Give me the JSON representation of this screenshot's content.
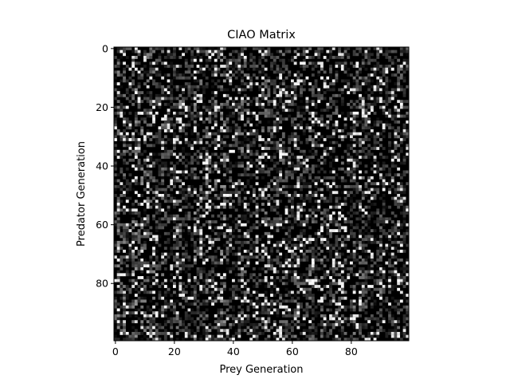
{
  "chart_data": {
    "type": "heatmap",
    "title": "CIAO Matrix",
    "xlabel": "Prey Generation",
    "ylabel": "Predator Generation",
    "x_range": [
      0,
      99
    ],
    "y_range": [
      0,
      99
    ],
    "rows": 100,
    "cols": 100,
    "y_axis_inverted": true,
    "colormap": "gray",
    "xticks": [
      {
        "value": 0,
        "label": "0"
      },
      {
        "value": 20,
        "label": "20"
      },
      {
        "value": 40,
        "label": "40"
      },
      {
        "value": 60,
        "label": "60"
      },
      {
        "value": 80,
        "label": "80"
      }
    ],
    "yticks": [
      {
        "value": 0,
        "label": "0"
      },
      {
        "value": 20,
        "label": "20"
      },
      {
        "value": 40,
        "label": "40"
      },
      {
        "value": 60,
        "label": "60"
      },
      {
        "value": 80,
        "label": "80"
      }
    ],
    "grid": false
  }
}
